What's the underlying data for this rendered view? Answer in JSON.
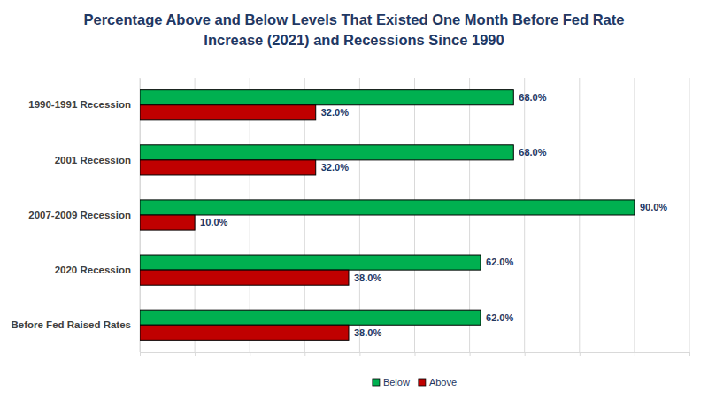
{
  "chart_data": {
    "type": "bar",
    "orientation": "horizontal",
    "title": "Percentage Above and Below Levels That Existed One Month Before Fed Rate Increase (2021) and Recessions Since 1990",
    "categories": [
      "1990-1991 Recession",
      "2001 Recession",
      "2007-2009 Recession",
      "2020 Recession",
      "Before Fed Raised Rates"
    ],
    "series": [
      {
        "name": "Below",
        "color": "#00b050",
        "values": [
          68,
          68,
          90,
          62,
          62
        ],
        "value_labels": [
          "68.0%",
          "68.0%",
          "90.0%",
          "62.0%",
          "62.0%"
        ]
      },
      {
        "name": "Above",
        "color": "#c00000",
        "values": [
          32,
          32,
          10,
          38,
          38
        ],
        "value_labels": [
          "32.0%",
          "32.0%",
          "10.0%",
          "38.0%",
          "38.0%"
        ]
      }
    ],
    "xlim": [
      0,
      100
    ],
    "xticks": [
      0,
      10,
      20,
      30,
      40,
      50,
      60,
      70,
      80,
      90,
      100
    ],
    "grid": true,
    "legend": "bottom",
    "data_labels": true,
    "tick_labels": "y"
  }
}
